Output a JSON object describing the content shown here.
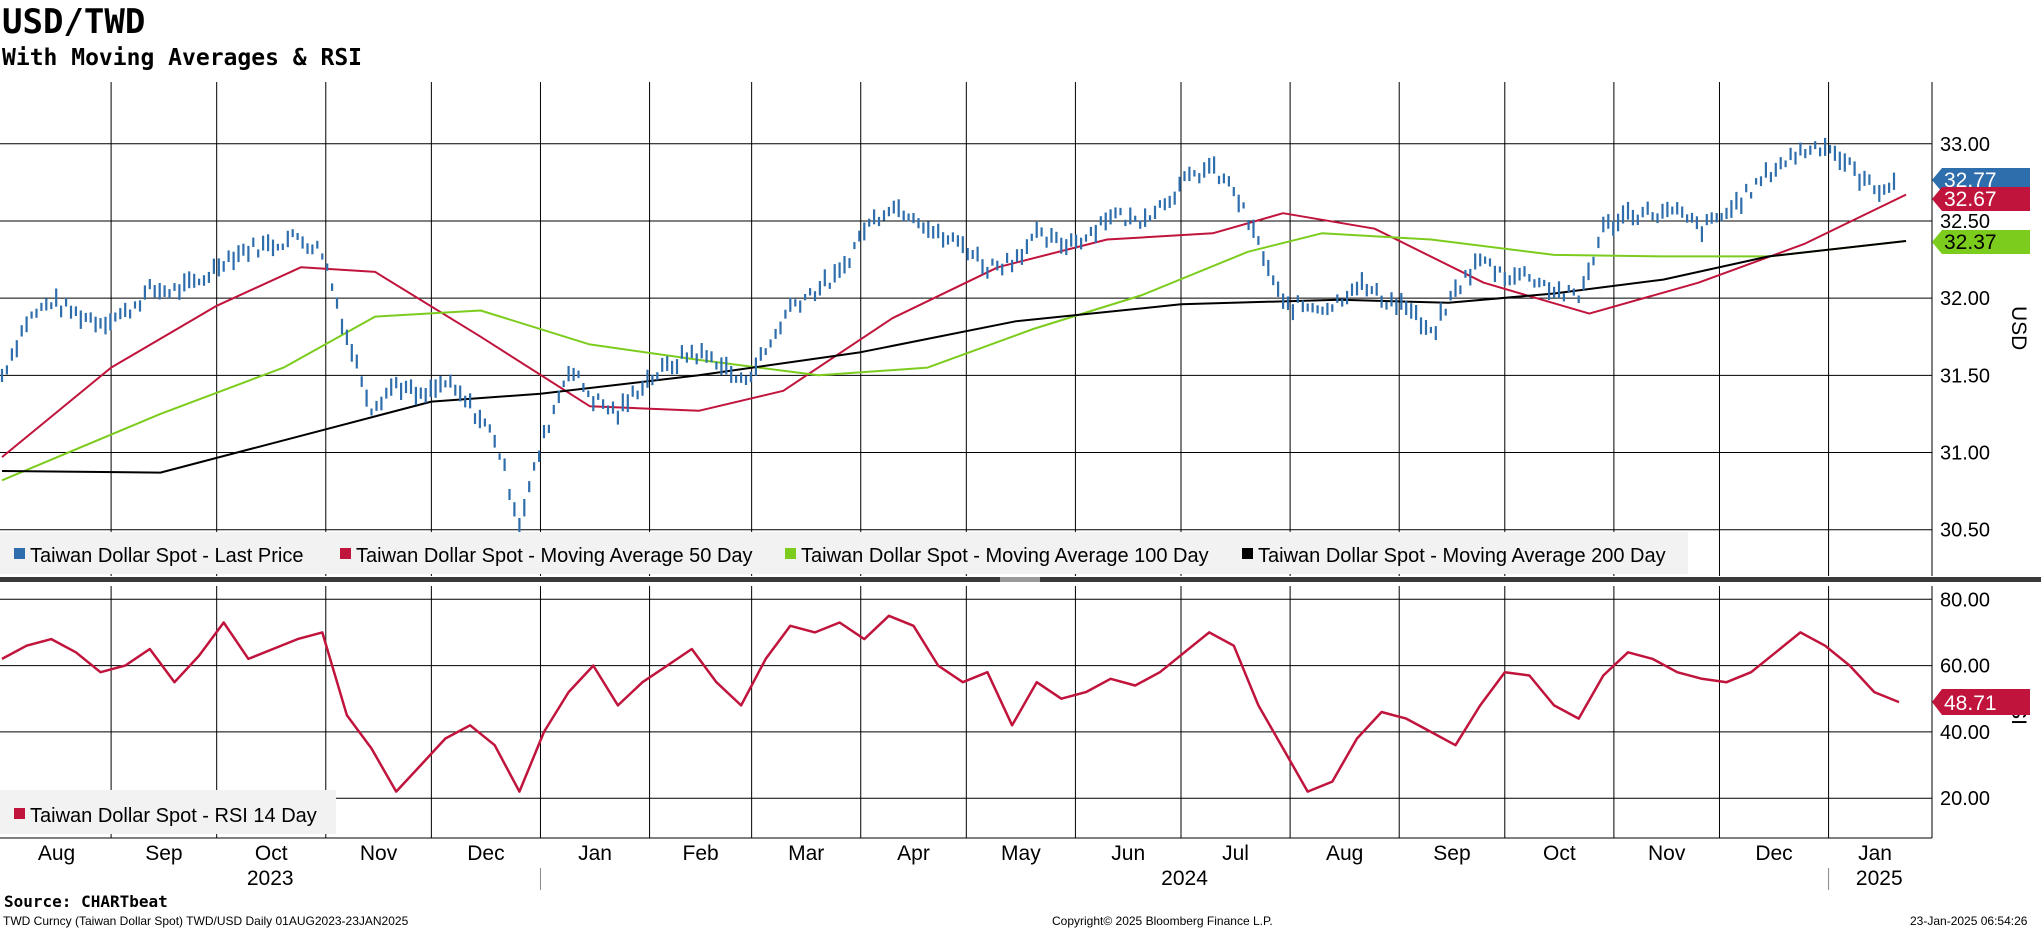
{
  "header": {
    "title": "USD/TWD",
    "subtitle": "With Moving Averages & RSI"
  },
  "footer": {
    "source": "Source: CHARTbeat",
    "left": "TWD Curncy (Taiwan Dollar Spot) TWD/USD  Daily 01AUG2023-23JAN2025",
    "center": "Copyright© 2025 Bloomberg Finance L.P.",
    "right": "23-Jan-2025 06:54:26"
  },
  "colors": {
    "price": "#2f6ead",
    "ma50": "#c0143c",
    "ma100": "#7ccc1e",
    "ma200": "#000000",
    "rsi": "#c0143c",
    "grid": "#000000"
  },
  "chart_data": [
    {
      "type": "line",
      "panel": "price",
      "ylabel": "USD",
      "ylim": [
        30.2,
        33.4
      ],
      "yticks": [
        30.5,
        31.0,
        31.5,
        32.0,
        32.5,
        33.0
      ],
      "ytick_labels": [
        "30.50",
        "31.00",
        "31.50",
        "32.00",
        "32.50",
        "33.00"
      ],
      "grid": true,
      "legend_position": "bottom-left",
      "x_start": "2023-08-01",
      "x_end": "2025-01-23",
      "last_value_tags": [
        {
          "series": "Taiwan Dollar Spot - Last Price",
          "label": "32.77"
        },
        {
          "series": "Taiwan Dollar Spot - Moving Average 50 Day",
          "label": "32.67"
        },
        {
          "series": "Taiwan Dollar Spot - Moving Average 100 Day",
          "label": "32.37"
        }
      ],
      "series": [
        {
          "name": "Taiwan Dollar Spot - Last Price",
          "style": "bars",
          "x": [
            "2023-08-01",
            "2023-08-08",
            "2023-08-15",
            "2023-08-22",
            "2023-08-29",
            "2023-09-05",
            "2023-09-12",
            "2023-09-19",
            "2023-09-26",
            "2023-10-03",
            "2023-10-10",
            "2023-10-17",
            "2023-10-24",
            "2023-10-31",
            "2023-11-07",
            "2023-11-14",
            "2023-11-21",
            "2023-11-28",
            "2023-12-05",
            "2023-12-12",
            "2023-12-19",
            "2023-12-26",
            "2024-01-02",
            "2024-01-09",
            "2024-01-16",
            "2024-01-23",
            "2024-01-30",
            "2024-02-06",
            "2024-02-13",
            "2024-02-20",
            "2024-02-27",
            "2024-03-05",
            "2024-03-12",
            "2024-03-19",
            "2024-03-26",
            "2024-04-02",
            "2024-04-09",
            "2024-04-16",
            "2024-04-23",
            "2024-04-30",
            "2024-05-07",
            "2024-05-14",
            "2024-05-21",
            "2024-05-28",
            "2024-06-04",
            "2024-06-11",
            "2024-06-18",
            "2024-06-25",
            "2024-07-02",
            "2024-07-09",
            "2024-07-16",
            "2024-07-23",
            "2024-07-30",
            "2024-08-06",
            "2024-08-13",
            "2024-08-20",
            "2024-08-27",
            "2024-09-03",
            "2024-09-10",
            "2024-09-17",
            "2024-09-24",
            "2024-10-01",
            "2024-10-08",
            "2024-10-15",
            "2024-10-22",
            "2024-10-29",
            "2024-11-05",
            "2024-11-12",
            "2024-11-19",
            "2024-11-26",
            "2024-12-03",
            "2024-12-10",
            "2024-12-17",
            "2024-12-24",
            "2024-12-31",
            "2025-01-07",
            "2025-01-14",
            "2025-01-21"
          ],
          "values": [
            31.5,
            31.85,
            31.98,
            31.9,
            31.85,
            31.9,
            32.05,
            32.05,
            32.1,
            32.25,
            32.32,
            32.35,
            32.4,
            32.3,
            31.75,
            31.3,
            31.45,
            31.35,
            31.45,
            31.3,
            31.1,
            30.55,
            31.1,
            31.55,
            31.35,
            31.25,
            31.45,
            31.55,
            31.65,
            31.6,
            31.45,
            31.65,
            31.95,
            32.05,
            32.15,
            32.45,
            32.6,
            32.55,
            32.4,
            32.35,
            32.2,
            32.25,
            32.4,
            32.35,
            32.4,
            32.55,
            32.5,
            32.6,
            32.75,
            32.85,
            32.7,
            32.35,
            31.95,
            31.95,
            31.95,
            32.1,
            32.0,
            31.95,
            31.75,
            32.05,
            32.25,
            32.15,
            32.15,
            32.05,
            32.0,
            32.45,
            32.55,
            32.55,
            32.55,
            32.45,
            32.55,
            32.7,
            32.85,
            32.95,
            33.0,
            32.85,
            32.7,
            32.77
          ]
        },
        {
          "name": "Taiwan Dollar Spot - Moving Average 50 Day",
          "x": [
            "2023-08-01",
            "2023-09-01",
            "2023-10-01",
            "2023-10-25",
            "2023-11-15",
            "2023-12-15",
            "2024-01-15",
            "2024-02-15",
            "2024-03-10",
            "2024-04-10",
            "2024-05-10",
            "2024-06-10",
            "2024-07-10",
            "2024-07-30",
            "2024-08-25",
            "2024-09-25",
            "2024-10-25",
            "2024-11-25",
            "2024-12-25",
            "2025-01-23"
          ],
          "values": [
            30.97,
            31.55,
            31.95,
            32.2,
            32.17,
            31.75,
            31.3,
            31.27,
            31.4,
            31.87,
            32.2,
            32.38,
            32.42,
            32.55,
            32.45,
            32.1,
            31.9,
            32.1,
            32.35,
            32.67
          ]
        },
        {
          "name": "Taiwan Dollar Spot - Moving Average 100 Day",
          "x": [
            "2023-08-01",
            "2023-09-15",
            "2023-10-20",
            "2023-11-15",
            "2023-12-15",
            "2024-01-15",
            "2024-02-15",
            "2024-03-20",
            "2024-04-20",
            "2024-05-20",
            "2024-06-20",
            "2024-07-20",
            "2024-08-10",
            "2024-09-10",
            "2024-10-15",
            "2024-11-15",
            "2024-12-15",
            "2025-01-23"
          ],
          "values": [
            30.82,
            31.25,
            31.55,
            31.88,
            31.92,
            31.7,
            31.6,
            31.5,
            31.55,
            31.8,
            32.02,
            32.3,
            32.42,
            32.38,
            32.28,
            32.27,
            32.27,
            32.37
          ]
        },
        {
          "name": "Taiwan Dollar Spot - Moving Average 200 Day",
          "x": [
            "2023-08-01",
            "2023-09-15",
            "2023-11-01",
            "2023-12-01",
            "2024-01-01",
            "2024-02-15",
            "2024-04-01",
            "2024-05-15",
            "2024-07-01",
            "2024-08-15",
            "2024-09-15",
            "2024-10-15",
            "2024-11-15",
            "2024-12-15",
            "2025-01-23"
          ],
          "values": [
            30.88,
            30.87,
            31.15,
            31.33,
            31.38,
            31.5,
            31.65,
            31.85,
            31.96,
            31.99,
            31.97,
            32.03,
            32.12,
            32.27,
            32.37
          ]
        }
      ]
    },
    {
      "type": "line",
      "panel": "rsi",
      "ylabel": "RSI",
      "ylim": [
        8,
        84
      ],
      "yticks": [
        20,
        40,
        60,
        80
      ],
      "ytick_labels": [
        "20.00",
        "40.00",
        "60.00",
        "80.00"
      ],
      "grid": true,
      "legend_position": "bottom-left",
      "last_value_tags": [
        {
          "series": "Taiwan Dollar Spot - RSI 14 Day",
          "label": "48.71"
        }
      ],
      "series": [
        {
          "name": "Taiwan Dollar Spot - RSI 14 Day",
          "x": [
            "2023-08-01",
            "2023-08-08",
            "2023-08-15",
            "2023-08-22",
            "2023-08-29",
            "2023-09-05",
            "2023-09-12",
            "2023-09-19",
            "2023-09-26",
            "2023-10-03",
            "2023-10-10",
            "2023-10-17",
            "2023-10-24",
            "2023-10-31",
            "2023-11-07",
            "2023-11-14",
            "2023-11-21",
            "2023-11-28",
            "2023-12-05",
            "2023-12-12",
            "2023-12-19",
            "2023-12-26",
            "2024-01-02",
            "2024-01-09",
            "2024-01-16",
            "2024-01-23",
            "2024-01-30",
            "2024-02-06",
            "2024-02-13",
            "2024-02-20",
            "2024-02-27",
            "2024-03-05",
            "2024-03-12",
            "2024-03-19",
            "2024-03-26",
            "2024-04-02",
            "2024-04-09",
            "2024-04-16",
            "2024-04-23",
            "2024-04-30",
            "2024-05-07",
            "2024-05-14",
            "2024-05-21",
            "2024-05-28",
            "2024-06-04",
            "2024-06-11",
            "2024-06-18",
            "2024-06-25",
            "2024-07-02",
            "2024-07-09",
            "2024-07-16",
            "2024-07-23",
            "2024-07-30",
            "2024-08-06",
            "2024-08-13",
            "2024-08-20",
            "2024-08-27",
            "2024-09-03",
            "2024-09-10",
            "2024-09-17",
            "2024-09-24",
            "2024-10-01",
            "2024-10-08",
            "2024-10-15",
            "2024-10-22",
            "2024-10-29",
            "2024-11-05",
            "2024-11-12",
            "2024-11-19",
            "2024-11-26",
            "2024-12-03",
            "2024-12-10",
            "2024-12-17",
            "2024-12-24",
            "2024-12-31",
            "2025-01-07",
            "2025-01-14",
            "2025-01-21"
          ],
          "values": [
            62,
            66,
            68,
            64,
            58,
            60,
            65,
            55,
            63,
            73,
            62,
            65,
            68,
            70,
            45,
            35,
            22,
            30,
            38,
            42,
            36,
            22,
            40,
            52,
            60,
            48,
            55,
            60,
            65,
            55,
            48,
            62,
            72,
            70,
            73,
            68,
            75,
            72,
            60,
            55,
            58,
            42,
            55,
            50,
            52,
            56,
            54,
            58,
            64,
            70,
            66,
            48,
            35,
            22,
            25,
            38,
            46,
            44,
            40,
            36,
            48,
            58,
            57,
            48,
            44,
            57,
            64,
            62,
            58,
            56,
            55,
            58,
            64,
            70,
            66,
            60,
            52,
            49
          ]
        }
      ]
    }
  ],
  "x_axis": {
    "months": [
      "Aug",
      "Sep",
      "Oct",
      "Nov",
      "Dec",
      "Jan",
      "Feb",
      "Mar",
      "Apr",
      "May",
      "Jun",
      "Jul",
      "Aug",
      "Sep",
      "Oct",
      "Nov",
      "Dec",
      "Jan"
    ],
    "years": [
      "2023",
      "2024",
      "2025"
    ]
  },
  "legends": {
    "price": [
      "Taiwan Dollar Spot - Last Price",
      "Taiwan Dollar Spot - Moving Average 50 Day",
      "Taiwan Dollar Spot - Moving Average 100 Day",
      "Taiwan Dollar Spot - Moving Average 200 Day"
    ],
    "rsi": [
      "Taiwan Dollar Spot - RSI 14 Day"
    ]
  }
}
